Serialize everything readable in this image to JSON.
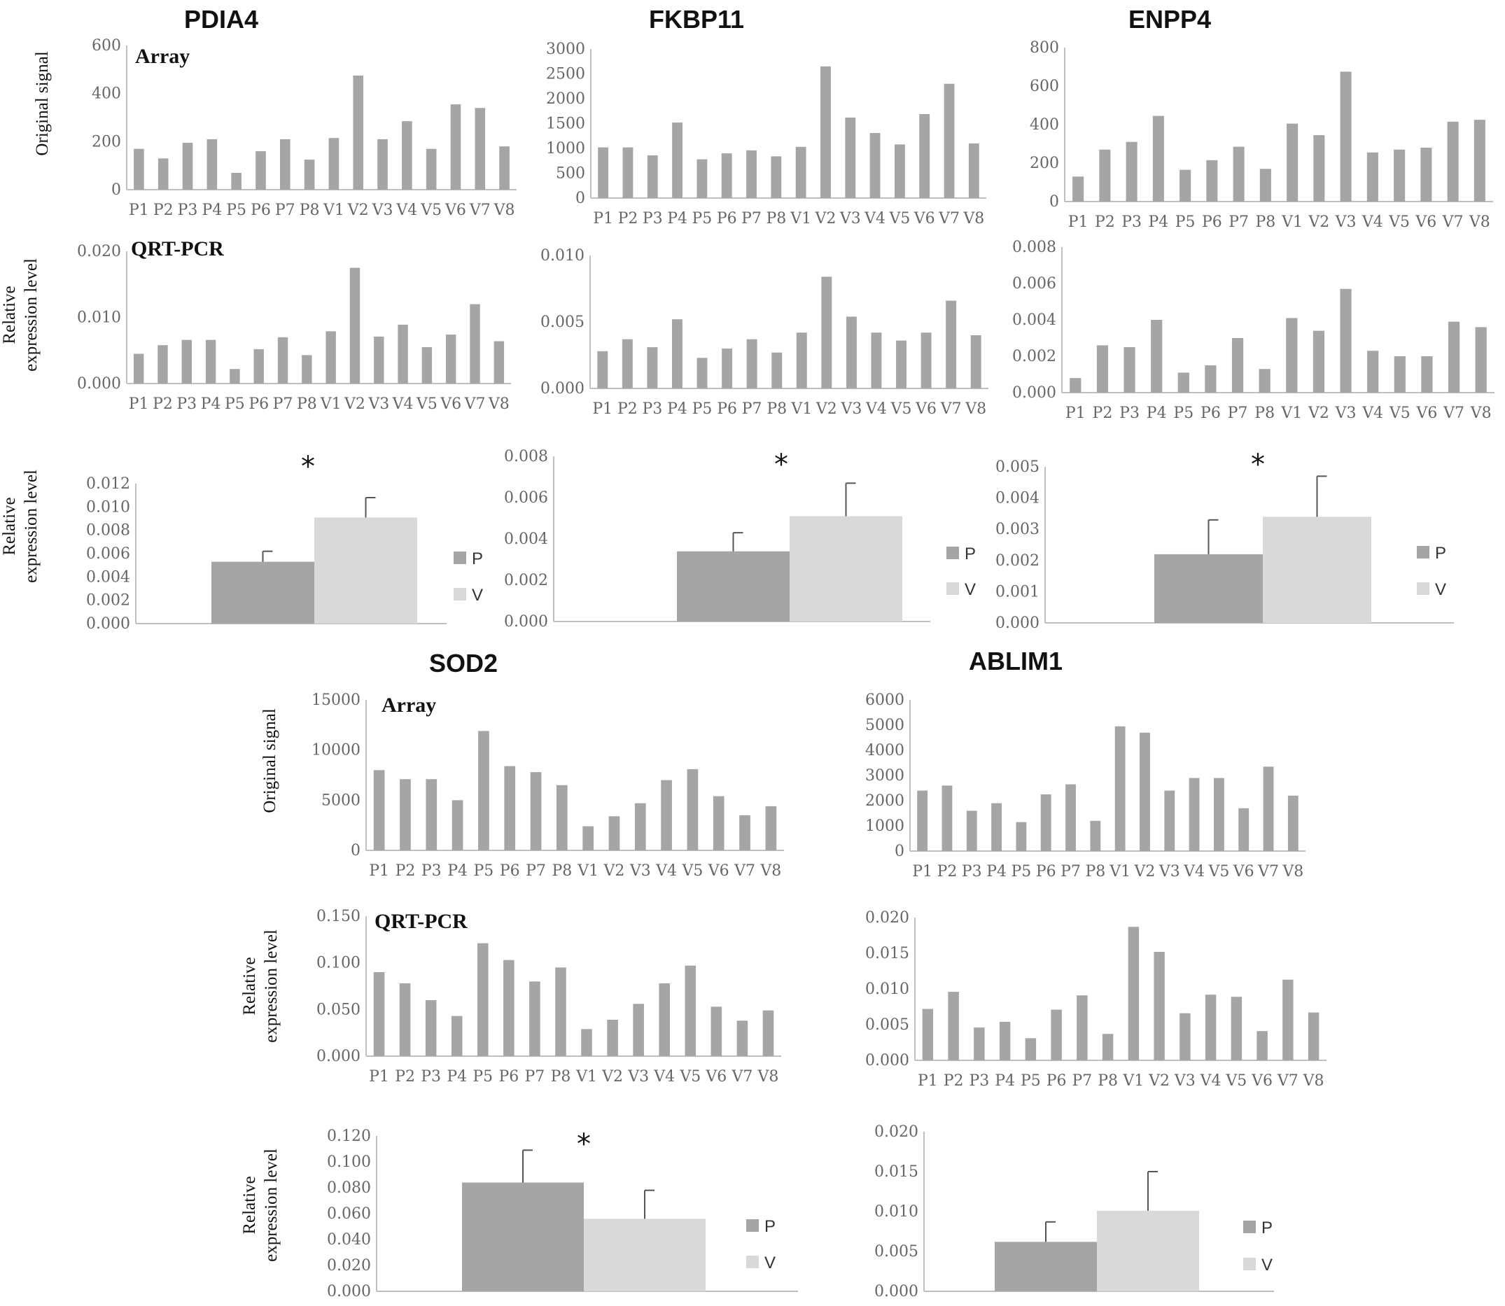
{
  "colors": {
    "bar": "#a5a5a5",
    "p": "#a5a5a5",
    "v": "#d9d9d9",
    "axis": "#bfbfbf",
    "text": "#666666"
  },
  "labels": {
    "original_signal": "Original signal",
    "relative_line1": "Relative",
    "relative_line2": "expression level",
    "array": "Array",
    "qrtpcr": "QRT-PCR",
    "legend_p": "P",
    "legend_v": "V",
    "star": "*"
  },
  "chart_data": [
    {
      "id": "pdia4-array",
      "gene": "PDIA4",
      "type": "bar",
      "tag": "Array",
      "ylabel": "Original signal",
      "ylim": [
        0,
        600
      ],
      "ticks": [
        "0",
        "200",
        "400",
        "600"
      ],
      "categories": [
        "P1",
        "P2",
        "P3",
        "P4",
        "P5",
        "P6",
        "P7",
        "P8",
        "V1",
        "V2",
        "V3",
        "V4",
        "V5",
        "V6",
        "V7",
        "V8"
      ],
      "values": [
        170,
        130,
        195,
        210,
        70,
        160,
        210,
        125,
        215,
        475,
        210,
        285,
        170,
        355,
        340,
        180
      ]
    },
    {
      "id": "fkbp11-array",
      "gene": "FKBP11",
      "type": "bar",
      "ylim": [
        0,
        3000
      ],
      "ticks": [
        "0",
        "500",
        "1000",
        "1500",
        "2000",
        "2500",
        "3000"
      ],
      "categories": [
        "P1",
        "P2",
        "P3",
        "P4",
        "P5",
        "P6",
        "P7",
        "P8",
        "V1",
        "V2",
        "V3",
        "V4",
        "V5",
        "V6",
        "V7",
        "V8"
      ],
      "values": [
        1020,
        1020,
        860,
        1520,
        780,
        900,
        960,
        840,
        1030,
        2650,
        1620,
        1310,
        1080,
        1690,
        2300,
        1100
      ]
    },
    {
      "id": "enpp4-array",
      "gene": "ENPP4",
      "type": "bar",
      "ylim": [
        0,
        800
      ],
      "ticks": [
        "0",
        "200",
        "400",
        "600",
        "800"
      ],
      "categories": [
        "P1",
        "P2",
        "P3",
        "P4",
        "P5",
        "P6",
        "P7",
        "P8",
        "V1",
        "V2",
        "V3",
        "V4",
        "V5",
        "V6",
        "V7",
        "V8"
      ],
      "values": [
        130,
        270,
        310,
        445,
        165,
        215,
        285,
        170,
        405,
        345,
        675,
        255,
        270,
        280,
        415,
        425
      ]
    },
    {
      "id": "pdia4-qpcr",
      "type": "bar",
      "tag": "QRT-PCR",
      "ylabel": "Relative expression level",
      "ylim": [
        0,
        0.02
      ],
      "ticks": [
        "0.000",
        "0.010",
        "0.020"
      ],
      "categories": [
        "P1",
        "P2",
        "P3",
        "P4",
        "P5",
        "P6",
        "P7",
        "P8",
        "V1",
        "V2",
        "V3",
        "V4",
        "V5",
        "V6",
        "V7",
        "V8"
      ],
      "values": [
        0.0045,
        0.0058,
        0.0066,
        0.0066,
        0.0022,
        0.0052,
        0.007,
        0.0043,
        0.0079,
        0.0175,
        0.0071,
        0.0089,
        0.0055,
        0.0074,
        0.012,
        0.0064
      ]
    },
    {
      "id": "fkbp11-qpcr",
      "type": "bar",
      "ylim": [
        0,
        0.01
      ],
      "ticks": [
        "0.000",
        "0.005",
        "0.010"
      ],
      "categories": [
        "P1",
        "P2",
        "P3",
        "P4",
        "P5",
        "P6",
        "P7",
        "P8",
        "V1",
        "V2",
        "V3",
        "V4",
        "V5",
        "V6",
        "V7",
        "V8"
      ],
      "values": [
        0.0028,
        0.0037,
        0.0031,
        0.0052,
        0.0023,
        0.003,
        0.0037,
        0.0027,
        0.0042,
        0.0084,
        0.0054,
        0.0042,
        0.0036,
        0.0042,
        0.0066,
        0.004
      ]
    },
    {
      "id": "enpp4-qpcr",
      "type": "bar",
      "ylim": [
        0,
        0.008
      ],
      "ticks": [
        "0.000",
        "0.002",
        "0.004",
        "0.006",
        "0.008"
      ],
      "categories": [
        "P1",
        "P2",
        "P3",
        "P4",
        "P5",
        "P6",
        "P7",
        "P8",
        "V1",
        "V2",
        "V3",
        "V4",
        "V5",
        "V6",
        "V7",
        "V8"
      ],
      "values": [
        0.0008,
        0.0026,
        0.0025,
        0.004,
        0.0011,
        0.0015,
        0.003,
        0.0013,
        0.0041,
        0.0034,
        0.0057,
        0.0023,
        0.002,
        0.002,
        0.0039,
        0.0036
      ]
    },
    {
      "id": "pdia4-summary",
      "type": "bar",
      "ylabel": "Relative expression level",
      "ylim": [
        0,
        0.012
      ],
      "ticks": [
        "0.000",
        "0.002",
        "0.004",
        "0.006",
        "0.008",
        "0.010",
        "0.012"
      ],
      "categories": [
        "P",
        "V"
      ],
      "values": [
        0.0053,
        0.0091
      ],
      "errors": [
        0.0009,
        0.0017
      ],
      "significant": true
    },
    {
      "id": "fkbp11-summary",
      "type": "bar",
      "ylim": [
        0,
        0.008
      ],
      "ticks": [
        "0.000",
        "0.002",
        "0.004",
        "0.006",
        "0.008"
      ],
      "categories": [
        "P",
        "V"
      ],
      "values": [
        0.0034,
        0.0051
      ],
      "errors": [
        0.0009,
        0.0016
      ],
      "significant": true
    },
    {
      "id": "enpp4-summary",
      "type": "bar",
      "ylim": [
        0,
        0.005
      ],
      "ticks": [
        "0.000",
        "0.001",
        "0.002",
        "0.003",
        "0.004",
        "0.005"
      ],
      "categories": [
        "P",
        "V"
      ],
      "values": [
        0.0022,
        0.0034
      ],
      "errors": [
        0.0011,
        0.0013
      ],
      "significant": true
    },
    {
      "id": "sod2-array",
      "gene": "SOD2",
      "type": "bar",
      "tag": "Array",
      "ylabel": "Original signal",
      "ylim": [
        0,
        15000
      ],
      "ticks": [
        "0",
        "5000",
        "10000",
        "15000"
      ],
      "categories": [
        "P1",
        "P2",
        "P3",
        "P4",
        "P5",
        "P6",
        "P7",
        "P8",
        "V1",
        "V2",
        "V3",
        "V4",
        "V5",
        "V6",
        "V7",
        "V8"
      ],
      "values": [
        8000,
        7100,
        7100,
        5000,
        11900,
        8400,
        7800,
        6500,
        2400,
        3400,
        4700,
        7000,
        8100,
        5400,
        3500,
        4400
      ]
    },
    {
      "id": "ablim1-array",
      "gene": "ABLIM1",
      "type": "bar",
      "ylim": [
        0,
        6000
      ],
      "ticks": [
        "0",
        "1000",
        "2000",
        "3000",
        "4000",
        "5000",
        "6000"
      ],
      "categories": [
        "P1",
        "P2",
        "P3",
        "P4",
        "P5",
        "P6",
        "P7",
        "P8",
        "V1",
        "V2",
        "V3",
        "V4",
        "V5",
        "V6",
        "V7",
        "V8"
      ],
      "values": [
        2400,
        2600,
        1600,
        1900,
        1150,
        2250,
        2650,
        1200,
        4950,
        4700,
        2400,
        2900,
        2900,
        1700,
        3350,
        2200
      ]
    },
    {
      "id": "sod2-qpcr",
      "type": "bar",
      "tag": "QRT-PCR",
      "ylabel": "Relative expression level",
      "ylim": [
        0,
        0.15
      ],
      "ticks": [
        "0.000",
        "0.050",
        "0.100",
        "0.150"
      ],
      "categories": [
        "P1",
        "P2",
        "P3",
        "P4",
        "P5",
        "P6",
        "P7",
        "P8",
        "V1",
        "V2",
        "V3",
        "V4",
        "V5",
        "V6",
        "V7",
        "V8"
      ],
      "values": [
        0.09,
        0.078,
        0.06,
        0.043,
        0.121,
        0.103,
        0.08,
        0.095,
        0.029,
        0.039,
        0.056,
        0.078,
        0.097,
        0.053,
        0.038,
        0.049
      ]
    },
    {
      "id": "ablim1-qpcr",
      "type": "bar",
      "ylim": [
        0,
        0.02
      ],
      "ticks": [
        "0.000",
        "0.005",
        "0.010",
        "0.015",
        "0.020"
      ],
      "categories": [
        "P1",
        "P2",
        "P3",
        "P4",
        "P5",
        "P6",
        "P7",
        "P8",
        "V1",
        "V2",
        "V3",
        "V4",
        "V5",
        "V6",
        "V7",
        "V8"
      ],
      "values": [
        0.0072,
        0.0096,
        0.0046,
        0.0054,
        0.0031,
        0.0071,
        0.0091,
        0.0037,
        0.0187,
        0.0152,
        0.0066,
        0.0092,
        0.0089,
        0.0041,
        0.0113,
        0.0067
      ]
    },
    {
      "id": "sod2-summary",
      "type": "bar",
      "ylabel": "Relative expression level",
      "ylim": [
        0,
        0.12
      ],
      "ticks": [
        "0.000",
        "0.020",
        "0.040",
        "0.060",
        "0.080",
        "0.100",
        "0.120"
      ],
      "categories": [
        "P",
        "V"
      ],
      "values": [
        0.084,
        0.056
      ],
      "errors": [
        0.025,
        0.022
      ],
      "significant": true
    },
    {
      "id": "ablim1-summary",
      "type": "bar",
      "ylim": [
        0,
        0.02
      ],
      "ticks": [
        "0.000",
        "0.005",
        "0.010",
        "0.015",
        "0.020"
      ],
      "categories": [
        "P",
        "V"
      ],
      "values": [
        0.0062,
        0.0101
      ],
      "errors": [
        0.0025,
        0.0049
      ],
      "significant": false
    }
  ]
}
